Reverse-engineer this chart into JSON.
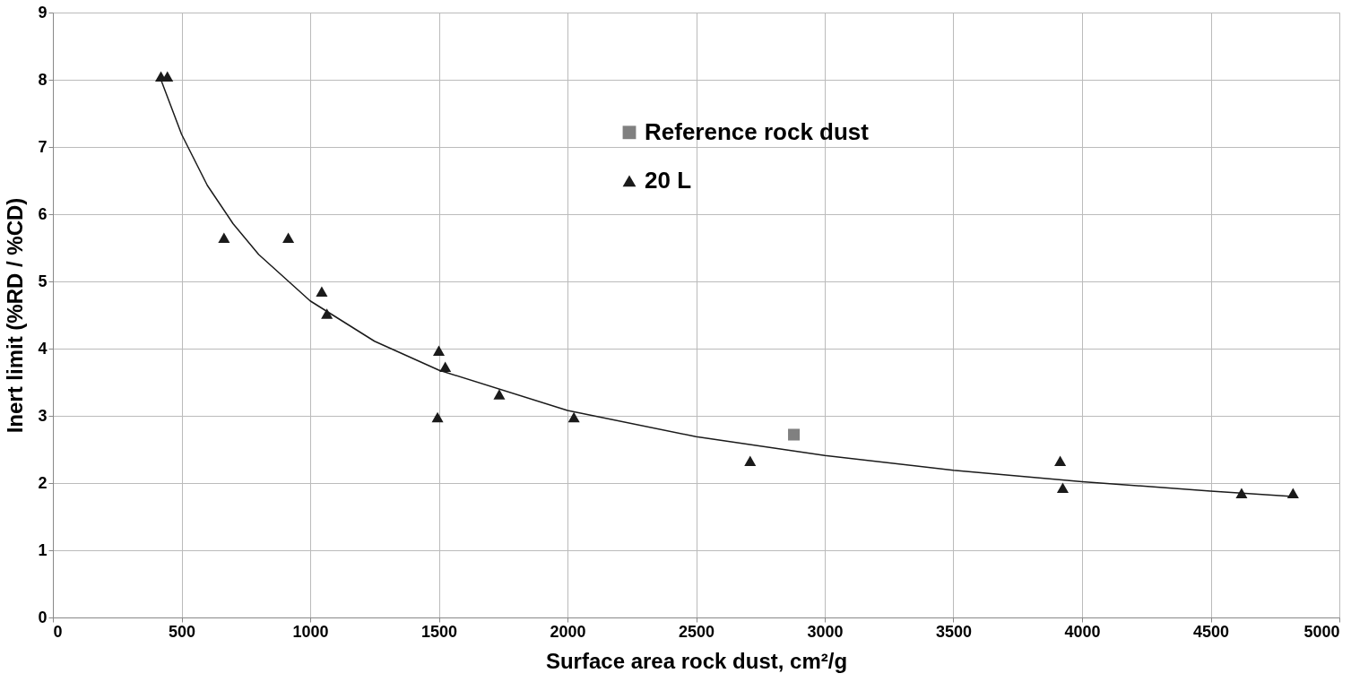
{
  "chart_data": {
    "type": "scatter",
    "xlabel": "Surface area rock dust, cm²/g",
    "ylabel": "Inert limit (%RD / %CD)",
    "xlim": [
      0,
      5000
    ],
    "xticks": [
      0,
      500,
      1000,
      1500,
      2000,
      2500,
      3000,
      3500,
      4000,
      4500,
      5000
    ],
    "ylim": [
      0,
      9
    ],
    "yticks": [
      0,
      1,
      2,
      3,
      4,
      5,
      6,
      7,
      8,
      9
    ],
    "grid": true,
    "legend": "top",
    "series": [
      {
        "name": "Reference rock dust",
        "type": "scatter",
        "marker": "square",
        "color": "#808080",
        "x": [
          2880
        ],
        "values": [
          2.72
        ]
      },
      {
        "name": "20 L",
        "type": "scatter",
        "marker": "triangle",
        "color": "#1a1a1a",
        "x": [
          420,
          445,
          665,
          915,
          1045,
          1065,
          1500,
          1495,
          1525,
          1735,
          2025,
          2710,
          3915,
          3925,
          4620,
          4820
        ],
        "values": [
          8.05,
          8.05,
          5.65,
          5.65,
          4.85,
          4.52,
          3.97,
          2.98,
          3.73,
          3.32,
          2.98,
          2.33,
          2.33,
          1.93,
          1.85,
          1.85
        ]
      },
      {
        "type": "line",
        "marker": "none",
        "color": "#1a1a1a",
        "x": [
          420,
          500,
          600,
          700,
          800,
          1000,
          1250,
          1500,
          2000,
          2500,
          3000,
          3500,
          4000,
          4500,
          4820
        ],
        "values": [
          8.0,
          7.19,
          6.43,
          5.86,
          5.4,
          4.71,
          4.11,
          3.68,
          3.08,
          2.69,
          2.41,
          2.19,
          2.02,
          1.88,
          1.8
        ]
      }
    ]
  }
}
